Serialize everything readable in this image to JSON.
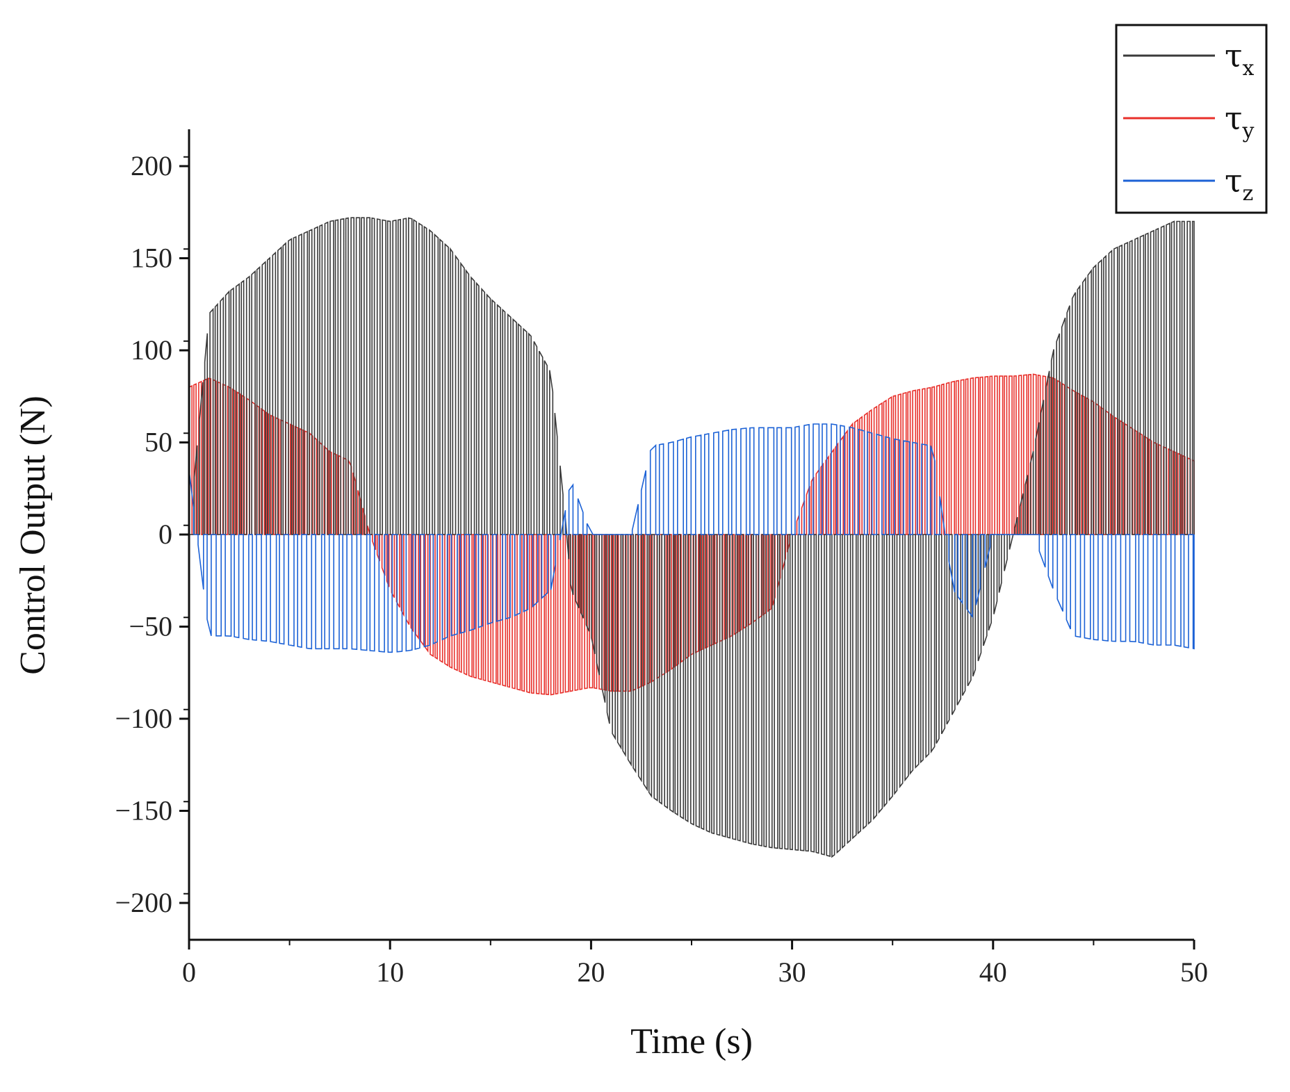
{
  "chart_data": {
    "type": "line",
    "title": "",
    "xlabel": "Time (s)",
    "ylabel": "Control Output (N)",
    "xlim": [
      0,
      50
    ],
    "ylim": [
      -220,
      220
    ],
    "x_ticks": [
      0,
      10,
      20,
      30,
      40,
      50
    ],
    "y_ticks": [
      -200,
      -150,
      -100,
      -50,
      0,
      50,
      100,
      150,
      200
    ],
    "x_tick_labels": [
      "0",
      "10",
      "20",
      "30",
      "40",
      "50"
    ],
    "y_tick_labels": [
      "−200",
      "−150",
      "−100",
      "−50",
      "0",
      "50",
      "100",
      "150",
      "200"
    ],
    "legend_position": "top-right",
    "grid": false,
    "series": [
      {
        "name": "τx",
        "symbol": "τ",
        "subscript": "x",
        "color": "#3a3a3a",
        "style": "switching bursts following a sinusoidal envelope",
        "envelope": [
          [
            0,
            0
          ],
          [
            1,
            120
          ],
          [
            2,
            132
          ],
          [
            3,
            140
          ],
          [
            4,
            150
          ],
          [
            5,
            160
          ],
          [
            6,
            165
          ],
          [
            7,
            170
          ],
          [
            8,
            172
          ],
          [
            9,
            172
          ],
          [
            10,
            170
          ],
          [
            11,
            172
          ],
          [
            12,
            165
          ],
          [
            13,
            155
          ],
          [
            14,
            140
          ],
          [
            15,
            128
          ],
          [
            16,
            118
          ],
          [
            17,
            108
          ],
          [
            18,
            88
          ],
          [
            18.8,
            0
          ],
          [
            19,
            -30
          ],
          [
            20,
            -55
          ],
          [
            21,
            -107
          ],
          [
            22,
            -125
          ],
          [
            23,
            -142
          ],
          [
            24,
            -150
          ],
          [
            25,
            -157
          ],
          [
            26,
            -162
          ],
          [
            27,
            -165
          ],
          [
            28,
            -168
          ],
          [
            29,
            -170
          ],
          [
            30,
            -171
          ],
          [
            31,
            -172
          ],
          [
            32,
            -175
          ],
          [
            33,
            -165
          ],
          [
            34,
            -155
          ],
          [
            35,
            -142
          ],
          [
            36,
            -128
          ],
          [
            37,
            -117
          ],
          [
            38,
            -97
          ],
          [
            39,
            -77
          ],
          [
            40,
            -45
          ],
          [
            41,
            0
          ],
          [
            42,
            45
          ],
          [
            43,
            100
          ],
          [
            44,
            130
          ],
          [
            45,
            145
          ],
          [
            46,
            155
          ],
          [
            47,
            160
          ],
          [
            48,
            165
          ],
          [
            49,
            170
          ],
          [
            50,
            170
          ]
        ]
      },
      {
        "name": "τy",
        "symbol": "τ",
        "subscript": "y",
        "color": "#e8302b",
        "style": "switching bursts following a cosine-like envelope",
        "envelope": [
          [
            0,
            80
          ],
          [
            1,
            85
          ],
          [
            2,
            80
          ],
          [
            3,
            73
          ],
          [
            4,
            65
          ],
          [
            5,
            60
          ],
          [
            6,
            55
          ],
          [
            7,
            45
          ],
          [
            8,
            40
          ],
          [
            9,
            0
          ],
          [
            10,
            -30
          ],
          [
            11,
            -50
          ],
          [
            12,
            -65
          ],
          [
            13,
            -72
          ],
          [
            14,
            -77
          ],
          [
            15,
            -80
          ],
          [
            16,
            -83
          ],
          [
            17,
            -86
          ],
          [
            18,
            -87
          ],
          [
            19,
            -85
          ],
          [
            20,
            -83
          ],
          [
            21,
            -85
          ],
          [
            22,
            -85
          ],
          [
            23,
            -80
          ],
          [
            24,
            -73
          ],
          [
            25,
            -65
          ],
          [
            26,
            -60
          ],
          [
            27,
            -55
          ],
          [
            28,
            -48
          ],
          [
            29,
            -40
          ],
          [
            30,
            0
          ],
          [
            31,
            30
          ],
          [
            32,
            45
          ],
          [
            33,
            60
          ],
          [
            34,
            68
          ],
          [
            35,
            75
          ],
          [
            36,
            78
          ],
          [
            37,
            80
          ],
          [
            38,
            83
          ],
          [
            39,
            85
          ],
          [
            40,
            86
          ],
          [
            41,
            86
          ],
          [
            42,
            87
          ],
          [
            43,
            85
          ],
          [
            44,
            78
          ],
          [
            45,
            72
          ],
          [
            46,
            64
          ],
          [
            47,
            57
          ],
          [
            48,
            50
          ],
          [
            49,
            45
          ],
          [
            50,
            40
          ]
        ]
      },
      {
        "name": "τz",
        "symbol": "τ",
        "subscript": "z",
        "color": "#1c62d6",
        "style": "switching bursts of opposite sign alternating around zero",
        "envelope": [
          [
            0,
            35
          ],
          [
            1,
            -55
          ],
          [
            2,
            -55
          ],
          [
            3,
            -57
          ],
          [
            4,
            -58
          ],
          [
            5,
            -60
          ],
          [
            6,
            -62
          ],
          [
            7,
            -62
          ],
          [
            8,
            -62
          ],
          [
            9,
            -63
          ],
          [
            10,
            -64
          ],
          [
            11,
            -63
          ],
          [
            12,
            -60
          ],
          [
            13,
            -55
          ],
          [
            14,
            -52
          ],
          [
            15,
            -48
          ],
          [
            16,
            -45
          ],
          [
            17,
            -40
          ],
          [
            18,
            -30
          ],
          [
            19,
            30
          ],
          [
            20,
            0
          ],
          [
            21,
            0
          ],
          [
            22,
            0
          ],
          [
            23,
            48
          ],
          [
            24,
            50
          ],
          [
            25,
            53
          ],
          [
            26,
            55
          ],
          [
            27,
            57
          ],
          [
            28,
            58
          ],
          [
            29,
            58
          ],
          [
            30,
            58
          ],
          [
            31,
            60
          ],
          [
            32,
            60
          ],
          [
            33,
            58
          ],
          [
            34,
            55
          ],
          [
            35,
            52
          ],
          [
            36,
            50
          ],
          [
            37,
            48
          ],
          [
            38,
            -30
          ],
          [
            39,
            -45
          ],
          [
            40,
            0
          ],
          [
            41,
            0
          ],
          [
            42,
            0
          ],
          [
            43,
            -30
          ],
          [
            44,
            -55
          ],
          [
            45,
            -57
          ],
          [
            46,
            -58
          ],
          [
            47,
            -58
          ],
          [
            48,
            -60
          ],
          [
            49,
            -60
          ],
          [
            50,
            -62
          ]
        ]
      }
    ]
  }
}
